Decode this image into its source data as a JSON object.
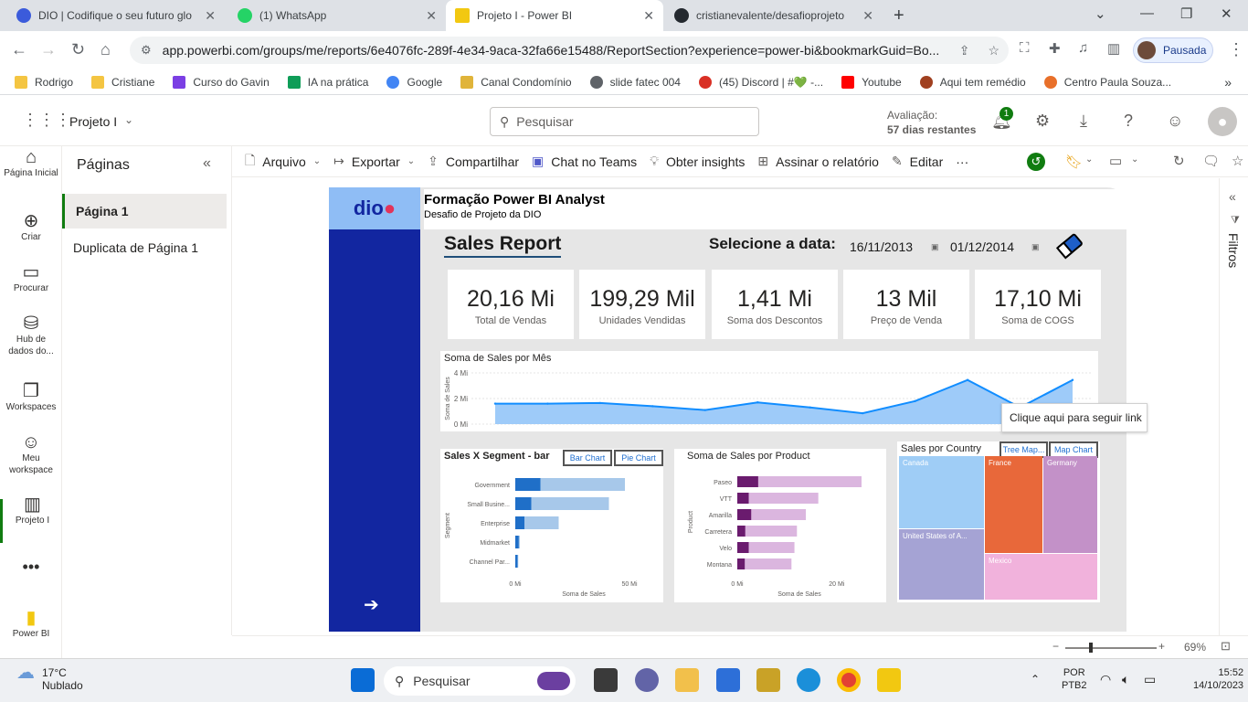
{
  "browser": {
    "tabs": [
      {
        "title": "DIO | Codifique o seu futuro glo",
        "icon": "dio-icon",
        "color": "#3b5bdb"
      },
      {
        "title": "(1) WhatsApp",
        "icon": "whatsapp-icon",
        "color": "#25d366"
      },
      {
        "title": "Projeto I - Power BI",
        "icon": "powerbi-icon",
        "color": "#f2c811"
      },
      {
        "title": "cristianevalente/desafioprojeto",
        "icon": "github-icon",
        "color": "#24292f"
      }
    ],
    "url": "app.powerbi.com/groups/me/reports/6e4076fc-289f-4e34-9aca-32fa66e15488/ReportSection?experience=power-bi&bookmarkGuid=Bo...",
    "profile_label": "Pausada",
    "bookmarks": [
      "Rodrigo",
      "Cristiane",
      "Curso do Gavin",
      "IA na prática",
      "Google",
      "Canal Condomínio",
      "slide fatec 004",
      "(45) Discord | #💚 -...",
      "Youtube",
      "Aqui tem remédio",
      "Centro Paula Souza..."
    ]
  },
  "pbi": {
    "workspace": "Projeto I",
    "search_placeholder": "Pesquisar",
    "trial_line1": "Avaliação:",
    "trial_line2": "57 dias restantes",
    "notifications": "1",
    "nav": [
      {
        "label": "Página Inicial",
        "icon": "home-icon"
      },
      {
        "label": "Criar",
        "icon": "create-icon"
      },
      {
        "label": "Procurar",
        "icon": "browse-icon"
      },
      {
        "label": "Hub de dados do...",
        "icon": "datahub-icon"
      },
      {
        "label": "Workspaces",
        "icon": "workspaces-icon"
      },
      {
        "label": "Meu workspace",
        "icon": "my-workspace-icon"
      },
      {
        "label": "Projeto I",
        "icon": "report-icon"
      },
      {
        "label": "Power BI",
        "icon": "powerbi-logo-icon"
      }
    ],
    "pages_title": "Páginas",
    "pages": [
      "Página 1",
      "Duplicata de Página 1"
    ],
    "actions": [
      "Arquivo",
      "Exportar",
      "Compartilhar",
      "Chat no Teams",
      "Obter insights",
      "Assinar o relatório",
      "Editar"
    ],
    "filters_label": "Filtros",
    "zoom": "69%"
  },
  "report": {
    "logo_text": "dio",
    "title": "Formação Power BI Analyst",
    "subtitle": "Desafio de Projeto da DIO",
    "heading": "Sales Report",
    "date_label": "Selecione a data:",
    "date_start": "16/11/2013",
    "date_end": "01/12/2014",
    "kpis": [
      {
        "value": "20,16 Mi",
        "label": "Total de Vendas"
      },
      {
        "value": "199,29 Mil",
        "label": "Unidades Vendidas"
      },
      {
        "value": "1,41 Mi",
        "label": "Soma dos Descontos"
      },
      {
        "value": "13 Mil",
        "label": "Preço de Venda"
      },
      {
        "value": "17,10 Mi",
        "label": "Soma de COGS"
      }
    ],
    "segment_buttons": [
      "Bar Chart",
      "Pie Chart"
    ],
    "country_buttons": [
      "Tree Map...",
      "Map Chart"
    ],
    "tooltip": "Clique aqui para seguir link"
  },
  "chart_data": [
    {
      "type": "area",
      "title": "Soma de Sales por Mês",
      "ylabel": "Soma de Sales",
      "yticks": [
        "4 Mi",
        "2 Mi",
        "0 Mi"
      ],
      "ylim": [
        0,
        4
      ],
      "x": [
        1,
        2,
        3,
        4,
        5,
        6,
        7,
        8,
        9,
        10,
        11,
        12
      ],
      "values": [
        1.6,
        1.6,
        1.65,
        1.4,
        1.1,
        1.7,
        1.3,
        0.85,
        1.8,
        3.45,
        1.3,
        3.45
      ],
      "color": "#118dff"
    },
    {
      "type": "bar",
      "title": "Sales X Segment - bar",
      "ylabel": "Segment",
      "xlabel": "Soma de Sales",
      "xticks": [
        "0 Mi",
        "50 Mi"
      ],
      "xlim": [
        0,
        60
      ],
      "categories": [
        "Government",
        "Small Busine...",
        "Enterprise",
        "Midmarket",
        "Channel Par..."
      ],
      "values": [
        48,
        41,
        19,
        2,
        1.3
      ],
      "highlight": [
        11,
        7,
        4,
        1.5,
        1
      ],
      "colors": [
        "#1f6fc8",
        "#a7c8ea"
      ]
    },
    {
      "type": "bar",
      "title": "Soma de Sales por Product",
      "ylabel": "Product",
      "xlabel": "Soma de Sales",
      "xticks": [
        "0 Mi",
        "20 Mi"
      ],
      "xlim": [
        0,
        25
      ],
      "categories": [
        "Paseo",
        "VTT",
        "Amarilla",
        "Carretera",
        "Velo",
        "Montana"
      ],
      "values": [
        25,
        16.3,
        13.8,
        12,
        11.5,
        10.9
      ],
      "highlight": [
        4.2,
        2.3,
        2.8,
        1.6,
        2.3,
        1.5
      ],
      "colors": [
        "#6a1b6e",
        "#dbb6df"
      ]
    },
    {
      "type": "treemap",
      "title": "Sales por Country",
      "categories": [
        "Canada",
        "France",
        "Germany",
        "United States of A...",
        "Mexico"
      ],
      "colors": [
        "#9fcdf6",
        "#e8683a",
        "#c391c8",
        "#a5a3d4",
        "#f1b2dc"
      ]
    }
  ],
  "taskbar": {
    "weather_temp": "17°C",
    "weather_desc": "Nublado",
    "search": "Pesquisar",
    "lang1": "POR",
    "lang2": "PTB2",
    "time": "15:52",
    "date": "14/10/2023"
  }
}
